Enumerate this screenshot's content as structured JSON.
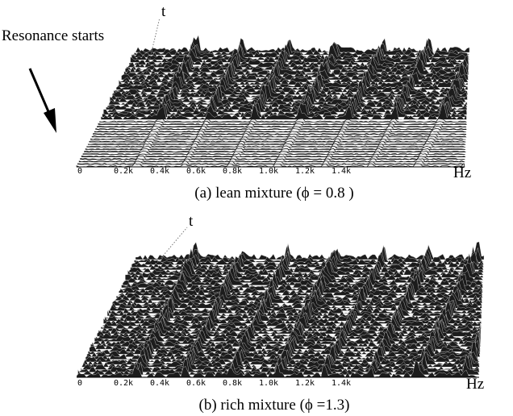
{
  "annotation": "Resonance starts",
  "panels": [
    {
      "time_axis": "t",
      "freq_axis": "Hz",
      "caption": "(a) lean mixture (ϕ = 0.8 )",
      "ticks": [
        "0",
        "0.2k",
        "0.4k",
        "0.6k",
        "0.8k",
        "1.0k",
        "1.2k",
        "1.4k"
      ]
    },
    {
      "time_axis": "t",
      "freq_axis": "Hz",
      "caption": "(b) rich mixture (ϕ =1.3)",
      "ticks": [
        "0",
        "0.2k",
        "0.4k",
        "0.6k",
        "0.8k",
        "1.0k",
        "1.2k",
        "1.4k"
      ]
    }
  ]
}
